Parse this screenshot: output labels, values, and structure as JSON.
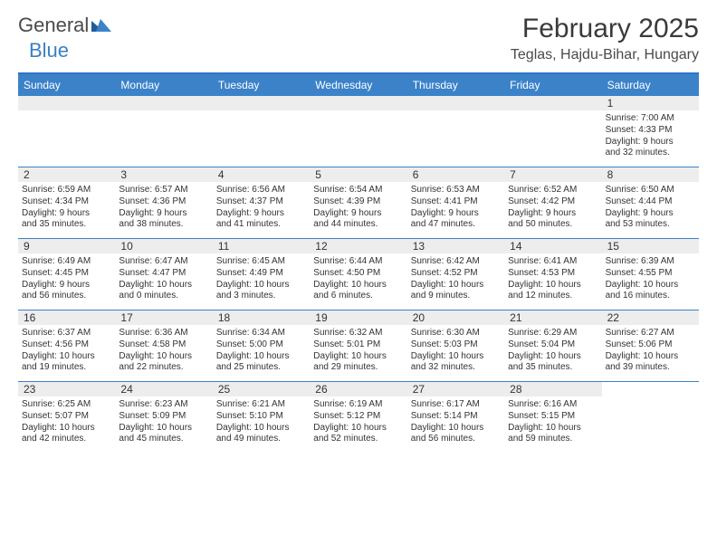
{
  "logo": {
    "general": "General",
    "blue": "Blue"
  },
  "title": "February 2025",
  "location": "Teglas, Hajdu-Bihar, Hungary",
  "colors": {
    "header_bg": "#3b82c9",
    "header_text": "#ffffff",
    "border": "#3b82c9",
    "daynum_bg": "#ededed",
    "text": "#333333",
    "page_bg": "#ffffff"
  },
  "weekdays": [
    "Sunday",
    "Monday",
    "Tuesday",
    "Wednesday",
    "Thursday",
    "Friday",
    "Saturday"
  ],
  "weeks": [
    [
      {
        "n": "",
        "sr": "",
        "ss": "",
        "dl1": "",
        "dl2": ""
      },
      {
        "n": "",
        "sr": "",
        "ss": "",
        "dl1": "",
        "dl2": ""
      },
      {
        "n": "",
        "sr": "",
        "ss": "",
        "dl1": "",
        "dl2": ""
      },
      {
        "n": "",
        "sr": "",
        "ss": "",
        "dl1": "",
        "dl2": ""
      },
      {
        "n": "",
        "sr": "",
        "ss": "",
        "dl1": "",
        "dl2": ""
      },
      {
        "n": "",
        "sr": "",
        "ss": "",
        "dl1": "",
        "dl2": ""
      },
      {
        "n": "1",
        "sr": "Sunrise: 7:00 AM",
        "ss": "Sunset: 4:33 PM",
        "dl1": "Daylight: 9 hours",
        "dl2": "and 32 minutes."
      }
    ],
    [
      {
        "n": "2",
        "sr": "Sunrise: 6:59 AM",
        "ss": "Sunset: 4:34 PM",
        "dl1": "Daylight: 9 hours",
        "dl2": "and 35 minutes."
      },
      {
        "n": "3",
        "sr": "Sunrise: 6:57 AM",
        "ss": "Sunset: 4:36 PM",
        "dl1": "Daylight: 9 hours",
        "dl2": "and 38 minutes."
      },
      {
        "n": "4",
        "sr": "Sunrise: 6:56 AM",
        "ss": "Sunset: 4:37 PM",
        "dl1": "Daylight: 9 hours",
        "dl2": "and 41 minutes."
      },
      {
        "n": "5",
        "sr": "Sunrise: 6:54 AM",
        "ss": "Sunset: 4:39 PM",
        "dl1": "Daylight: 9 hours",
        "dl2": "and 44 minutes."
      },
      {
        "n": "6",
        "sr": "Sunrise: 6:53 AM",
        "ss": "Sunset: 4:41 PM",
        "dl1": "Daylight: 9 hours",
        "dl2": "and 47 minutes."
      },
      {
        "n": "7",
        "sr": "Sunrise: 6:52 AM",
        "ss": "Sunset: 4:42 PM",
        "dl1": "Daylight: 9 hours",
        "dl2": "and 50 minutes."
      },
      {
        "n": "8",
        "sr": "Sunrise: 6:50 AM",
        "ss": "Sunset: 4:44 PM",
        "dl1": "Daylight: 9 hours",
        "dl2": "and 53 minutes."
      }
    ],
    [
      {
        "n": "9",
        "sr": "Sunrise: 6:49 AM",
        "ss": "Sunset: 4:45 PM",
        "dl1": "Daylight: 9 hours",
        "dl2": "and 56 minutes."
      },
      {
        "n": "10",
        "sr": "Sunrise: 6:47 AM",
        "ss": "Sunset: 4:47 PM",
        "dl1": "Daylight: 10 hours",
        "dl2": "and 0 minutes."
      },
      {
        "n": "11",
        "sr": "Sunrise: 6:45 AM",
        "ss": "Sunset: 4:49 PM",
        "dl1": "Daylight: 10 hours",
        "dl2": "and 3 minutes."
      },
      {
        "n": "12",
        "sr": "Sunrise: 6:44 AM",
        "ss": "Sunset: 4:50 PM",
        "dl1": "Daylight: 10 hours",
        "dl2": "and 6 minutes."
      },
      {
        "n": "13",
        "sr": "Sunrise: 6:42 AM",
        "ss": "Sunset: 4:52 PM",
        "dl1": "Daylight: 10 hours",
        "dl2": "and 9 minutes."
      },
      {
        "n": "14",
        "sr": "Sunrise: 6:41 AM",
        "ss": "Sunset: 4:53 PM",
        "dl1": "Daylight: 10 hours",
        "dl2": "and 12 minutes."
      },
      {
        "n": "15",
        "sr": "Sunrise: 6:39 AM",
        "ss": "Sunset: 4:55 PM",
        "dl1": "Daylight: 10 hours",
        "dl2": "and 16 minutes."
      }
    ],
    [
      {
        "n": "16",
        "sr": "Sunrise: 6:37 AM",
        "ss": "Sunset: 4:56 PM",
        "dl1": "Daylight: 10 hours",
        "dl2": "and 19 minutes."
      },
      {
        "n": "17",
        "sr": "Sunrise: 6:36 AM",
        "ss": "Sunset: 4:58 PM",
        "dl1": "Daylight: 10 hours",
        "dl2": "and 22 minutes."
      },
      {
        "n": "18",
        "sr": "Sunrise: 6:34 AM",
        "ss": "Sunset: 5:00 PM",
        "dl1": "Daylight: 10 hours",
        "dl2": "and 25 minutes."
      },
      {
        "n": "19",
        "sr": "Sunrise: 6:32 AM",
        "ss": "Sunset: 5:01 PM",
        "dl1": "Daylight: 10 hours",
        "dl2": "and 29 minutes."
      },
      {
        "n": "20",
        "sr": "Sunrise: 6:30 AM",
        "ss": "Sunset: 5:03 PM",
        "dl1": "Daylight: 10 hours",
        "dl2": "and 32 minutes."
      },
      {
        "n": "21",
        "sr": "Sunrise: 6:29 AM",
        "ss": "Sunset: 5:04 PM",
        "dl1": "Daylight: 10 hours",
        "dl2": "and 35 minutes."
      },
      {
        "n": "22",
        "sr": "Sunrise: 6:27 AM",
        "ss": "Sunset: 5:06 PM",
        "dl1": "Daylight: 10 hours",
        "dl2": "and 39 minutes."
      }
    ],
    [
      {
        "n": "23",
        "sr": "Sunrise: 6:25 AM",
        "ss": "Sunset: 5:07 PM",
        "dl1": "Daylight: 10 hours",
        "dl2": "and 42 minutes."
      },
      {
        "n": "24",
        "sr": "Sunrise: 6:23 AM",
        "ss": "Sunset: 5:09 PM",
        "dl1": "Daylight: 10 hours",
        "dl2": "and 45 minutes."
      },
      {
        "n": "25",
        "sr": "Sunrise: 6:21 AM",
        "ss": "Sunset: 5:10 PM",
        "dl1": "Daylight: 10 hours",
        "dl2": "and 49 minutes."
      },
      {
        "n": "26",
        "sr": "Sunrise: 6:19 AM",
        "ss": "Sunset: 5:12 PM",
        "dl1": "Daylight: 10 hours",
        "dl2": "and 52 minutes."
      },
      {
        "n": "27",
        "sr": "Sunrise: 6:17 AM",
        "ss": "Sunset: 5:14 PM",
        "dl1": "Daylight: 10 hours",
        "dl2": "and 56 minutes."
      },
      {
        "n": "28",
        "sr": "Sunrise: 6:16 AM",
        "ss": "Sunset: 5:15 PM",
        "dl1": "Daylight: 10 hours",
        "dl2": "and 59 minutes."
      },
      {
        "n": "",
        "sr": "",
        "ss": "",
        "dl1": "",
        "dl2": ""
      }
    ]
  ]
}
